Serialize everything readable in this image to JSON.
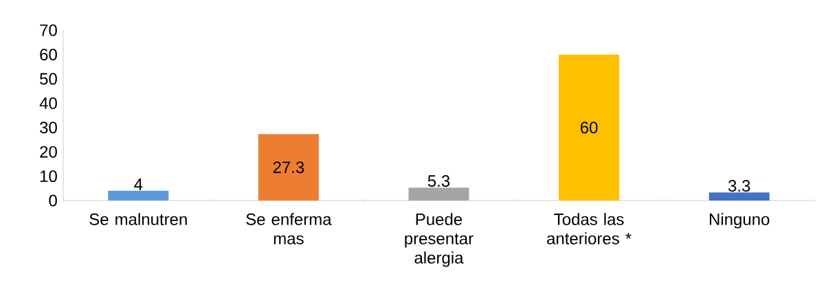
{
  "chart_data": {
    "type": "bar",
    "categories": [
      "Se malnutren",
      "Se enferma mas",
      "Puede presentar alergia",
      "Todas las anteriores *",
      "Ninguno"
    ],
    "values": [
      4,
      27.3,
      5.3,
      60,
      3.3
    ],
    "colors": [
      "#5b9bd5",
      "#ed7d31",
      "#a5a5a5",
      "#ffc000",
      "#4472c4"
    ],
    "ylim": [
      0,
      70
    ],
    "yticks": [
      0,
      10,
      20,
      30,
      40,
      50,
      60,
      70
    ],
    "data_labels": true,
    "grid": false
  }
}
